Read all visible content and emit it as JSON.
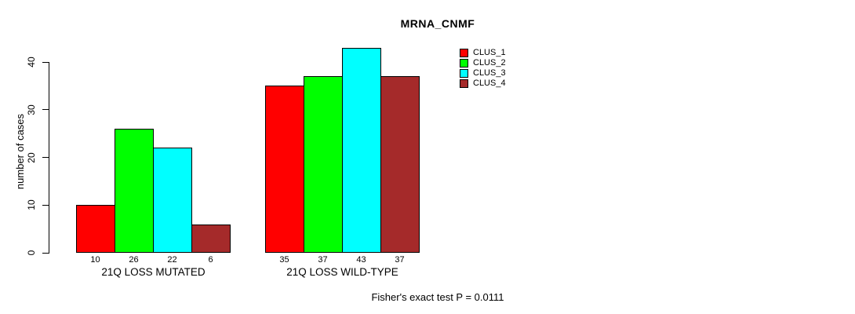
{
  "chart_data": {
    "type": "bar",
    "title": "MRNA_CNMF",
    "ylabel": "number of cases",
    "xlabel": "",
    "yticks": [
      0,
      10,
      20,
      30,
      40
    ],
    "ylim": [
      0,
      43
    ],
    "grid": false,
    "categories": [
      "21Q LOSS MUTATED",
      "21Q LOSS WILD-TYPE"
    ],
    "series": [
      {
        "name": "CLUS_1",
        "color": "#FF0000",
        "values": [
          10,
          35
        ]
      },
      {
        "name": "CLUS_2",
        "color": "#00FF00",
        "values": [
          26,
          37
        ]
      },
      {
        "name": "CLUS_3",
        "color": "#00FFFF",
        "values": [
          22,
          43
        ]
      },
      {
        "name": "CLUS_4",
        "color": "#A52A2A",
        "values": [
          6,
          37
        ]
      }
    ],
    "bar_value_labels_shown": true,
    "legend": {
      "position": "inside-top-right",
      "entries": [
        "CLUS_1",
        "CLUS_2",
        "CLUS_3",
        "CLUS_4"
      ]
    },
    "annotation": "Fisher's exact test P = 0.0111"
  }
}
